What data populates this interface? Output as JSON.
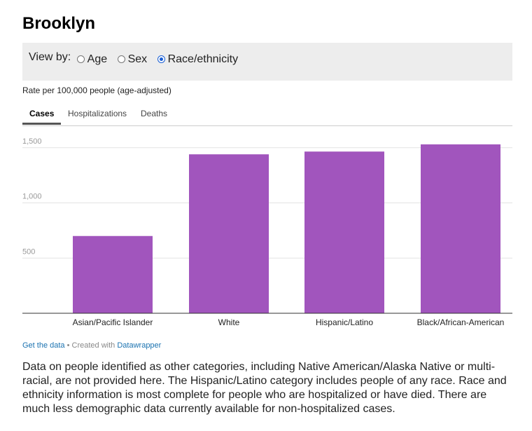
{
  "title": "Brooklyn",
  "view_by": {
    "label": "View by:",
    "options": [
      {
        "label": "Age",
        "selected": false
      },
      {
        "label": "Sex",
        "selected": false
      },
      {
        "label": "Race/ethnicity",
        "selected": true
      }
    ]
  },
  "subtitle": "Rate per 100,000 people (age-adjusted)",
  "tabs": [
    "Cases",
    "Hospitalizations",
    "Deaths"
  ],
  "active_tab": "Cases",
  "chart_data": {
    "type": "bar",
    "categories": [
      "Asian/Pacific Islander",
      "White",
      "Hispanic/Latino",
      "Black/African-American"
    ],
    "values": [
      700,
      1440,
      1465,
      1530
    ],
    "ylim": [
      0,
      1600
    ],
    "yticks": [
      500,
      1000,
      1500
    ],
    "ytick_labels": [
      "500",
      "1,000",
      "1,500"
    ],
    "bar_color": "#a155bd",
    "grid": true
  },
  "footer": {
    "get_data": "Get the data",
    "separator": "•",
    "created_with": "Created with",
    "tool": "Datawrapper"
  },
  "note": "Data on people identified as other categories, including Native American/Alaska Native or multi-racial, are not provided here. The Hispanic/Latino category includes people of any race. Race and ethnicity information is most complete for people who are hospitalized or have died. There are much less demographic data currently available for non-hospitalized cases."
}
